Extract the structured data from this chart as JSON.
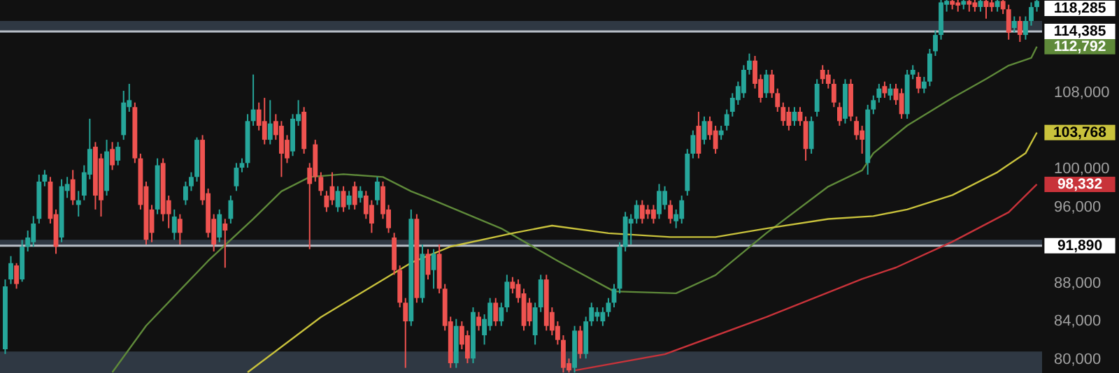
{
  "chart_data": {
    "type": "candlestick",
    "categories": [
      null,
      null,
      null,
      null,
      null,
      null,
      null,
      null,
      null,
      null,
      null,
      null,
      null,
      null,
      null,
      null,
      null,
      null,
      null,
      null,
      null,
      null,
      null,
      null,
      null,
      null,
      null,
      null,
      null,
      null,
      null,
      null,
      null,
      null,
      null,
      null,
      null,
      null,
      null,
      null,
      null,
      null,
      null,
      null,
      null,
      null,
      null,
      null,
      null,
      null,
      null,
      null,
      null,
      null,
      null,
      null,
      null,
      null,
      null,
      null,
      null,
      null,
      null,
      null,
      null,
      null,
      null,
      null,
      null,
      null,
      null,
      null,
      null,
      null,
      null,
      null,
      null,
      null,
      null,
      null,
      null,
      null,
      null,
      null,
      null,
      null,
      null,
      null,
      null,
      null,
      null,
      null,
      null,
      null,
      null,
      null,
      null,
      null,
      null,
      null,
      null,
      null,
      null,
      null,
      null,
      null,
      null,
      null,
      null,
      null,
      null,
      null,
      null,
      null,
      null,
      null,
      null,
      null,
      null,
      null,
      null,
      null,
      null,
      null,
      null,
      null,
      null,
      null,
      null,
      null,
      null,
      null,
      null,
      null,
      null,
      null,
      null,
      null,
      null,
      null,
      null,
      null,
      null,
      null,
      null,
      null,
      null,
      null,
      null,
      null,
      null,
      null,
      null,
      null,
      null,
      null,
      null,
      null,
      null,
      null,
      null,
      null,
      null,
      null,
      null,
      null,
      null,
      null,
      null,
      null,
      null,
      null,
      null,
      null,
      null,
      null,
      null,
      null,
      null,
      null,
      null,
      null,
      null,
      null
    ],
    "ohlc": [
      [
        81020,
        88350,
        80530,
        87620
      ],
      [
        88350,
        90800,
        87870,
        90060
      ],
      [
        89820,
        90060,
        87380,
        87870
      ],
      [
        88350,
        92500,
        88110,
        91780
      ],
      [
        91780,
        93480,
        91290,
        92750
      ],
      [
        92260,
        95000,
        91780,
        94220
      ],
      [
        94710,
        99350,
        94220,
        98620
      ],
      [
        98620,
        99840,
        98130,
        99350
      ],
      [
        98620,
        99110,
        94220,
        94710
      ],
      [
        95200,
        95690,
        91040,
        91780
      ],
      [
        92750,
        98860,
        92260,
        98130
      ],
      [
        97640,
        99110,
        96910,
        98370
      ],
      [
        98860,
        99840,
        96170,
        96660
      ],
      [
        96170,
        97640,
        94950,
        96660
      ],
      [
        97150,
        100330,
        96660,
        99600
      ],
      [
        99350,
        105220,
        98860,
        102040
      ],
      [
        102280,
        102770,
        95690,
        97150
      ],
      [
        101060,
        101550,
        94950,
        96660
      ],
      [
        97640,
        103010,
        97150,
        101790
      ],
      [
        102040,
        102770,
        99840,
        100330
      ],
      [
        100820,
        102770,
        100330,
        102280
      ],
      [
        103500,
        108150,
        103010,
        106920
      ],
      [
        106440,
        108880,
        105950,
        107170
      ],
      [
        106440,
        106920,
        100570,
        101060
      ],
      [
        101060,
        101550,
        95690,
        96170
      ],
      [
        98130,
        98620,
        92020,
        92510
      ],
      [
        95690,
        96170,
        92260,
        93240
      ],
      [
        95690,
        101060,
        95200,
        100330
      ],
      [
        100570,
        101060,
        94460,
        95200
      ],
      [
        96660,
        97150,
        93730,
        95200
      ],
      [
        93240,
        95690,
        92510,
        94950
      ],
      [
        94710,
        95200,
        92020,
        93240
      ],
      [
        96660,
        98620,
        96170,
        98130
      ],
      [
        98130,
        99600,
        97640,
        99110
      ],
      [
        99110,
        103260,
        98620,
        103010
      ],
      [
        103010,
        103500,
        96170,
        96660
      ],
      [
        97400,
        97890,
        92750,
        93240
      ],
      [
        94710,
        95200,
        91290,
        92020
      ],
      [
        92750,
        95690,
        92260,
        95200
      ],
      [
        94220,
        94710,
        89580,
        93485
      ],
      [
        94710,
        97150,
        94220,
        96660
      ],
      [
        98130,
        100570,
        97640,
        100080
      ],
      [
        100080,
        101060,
        99600,
        100570
      ],
      [
        100570,
        105700,
        100080,
        104970
      ],
      [
        104970,
        109860,
        104480,
        106190
      ],
      [
        106190,
        106920,
        103990,
        104480
      ],
      [
        104970,
        107410,
        102530,
        103010
      ],
      [
        103010,
        107170,
        102530,
        104720
      ],
      [
        104970,
        105700,
        103010,
        103500
      ],
      [
        104480,
        104970,
        99110,
        101550
      ],
      [
        103010,
        103500,
        100570,
        101060
      ],
      [
        101790,
        105700,
        101310,
        105220
      ],
      [
        104970,
        107170,
        104480,
        105700
      ],
      [
        105950,
        106440,
        101550,
        102040
      ],
      [
        100080,
        100570,
        91530,
        98370
      ],
      [
        102530,
        103010,
        98620,
        99110
      ],
      [
        99110,
        99600,
        97150,
        97640
      ],
      [
        97150,
        97640,
        95440,
        95930
      ],
      [
        98130,
        99600,
        96170,
        96660
      ],
      [
        95930,
        98130,
        95440,
        97640
      ],
      [
        97640,
        98130,
        95440,
        95930
      ],
      [
        96170,
        97640,
        95690,
        97150
      ],
      [
        98130,
        98620,
        95690,
        96170
      ],
      [
        96910,
        98130,
        96420,
        97640
      ],
      [
        97150,
        97640,
        94710,
        95200
      ],
      [
        96170,
        96660,
        93240,
        94220
      ],
      [
        96660,
        99110,
        96170,
        98620
      ],
      [
        98130,
        98620,
        94710,
        95200
      ],
      [
        95690,
        96170,
        93240,
        93730
      ],
      [
        92750,
        93240,
        88840,
        89330
      ],
      [
        89330,
        89820,
        85420,
        85910
      ],
      [
        85910,
        86400,
        79070,
        83950
      ],
      [
        83950,
        95690,
        83470,
        94710
      ],
      [
        94710,
        95200,
        85910,
        86400
      ],
      [
        86400,
        92020,
        85910,
        91040
      ],
      [
        91040,
        91530,
        88350,
        88840
      ],
      [
        89330,
        91530,
        87380,
        91040
      ],
      [
        91040,
        92020,
        86890,
        87380
      ],
      [
        87380,
        87870,
        82980,
        83470
      ],
      [
        83950,
        84440,
        79070,
        79560
      ],
      [
        79560,
        84200,
        79070,
        83470
      ],
      [
        83470,
        83950,
        81020,
        81510
      ],
      [
        82490,
        82980,
        79560,
        80050
      ],
      [
        80050,
        85420,
        79560,
        84930
      ],
      [
        84440,
        84930,
        82980,
        83470
      ],
      [
        82490,
        84690,
        81510,
        84200
      ],
      [
        83470,
        86400,
        82980,
        85910
      ],
      [
        85910,
        86400,
        83470,
        83950
      ],
      [
        83950,
        85910,
        83470,
        85420
      ],
      [
        85420,
        88840,
        84930,
        88110
      ],
      [
        88110,
        88600,
        86890,
        87380
      ],
      [
        87870,
        88350,
        85910,
        86400
      ],
      [
        86890,
        87380,
        82980,
        83470
      ],
      [
        85910,
        86400,
        83470,
        83950
      ],
      [
        82490,
        85910,
        81510,
        85420
      ],
      [
        85420,
        88840,
        84930,
        88350
      ],
      [
        88350,
        88840,
        82980,
        83470
      ],
      [
        84930,
        85420,
        82490,
        82980
      ],
      [
        83470,
        83950,
        81510,
        82000
      ],
      [
        82000,
        82490,
        78580,
        79070
      ],
      [
        79560,
        80050,
        78580,
        78800
      ],
      [
        79070,
        83470,
        78580,
        82980
      ],
      [
        82980,
        83470,
        80050,
        80530
      ],
      [
        80530,
        84440,
        80050,
        83950
      ],
      [
        83950,
        85910,
        83470,
        85420
      ],
      [
        84440,
        85420,
        83950,
        84930
      ],
      [
        83950,
        85420,
        83470,
        84930
      ],
      [
        84930,
        86400,
        84440,
        85910
      ],
      [
        85910,
        87870,
        85420,
        87380
      ],
      [
        87380,
        92260,
        86890,
        91780
      ],
      [
        91780,
        95440,
        91290,
        94950
      ],
      [
        94220,
        95200,
        92020,
        94710
      ],
      [
        94710,
        96660,
        94220,
        96170
      ],
      [
        96170,
        96660,
        94220,
        94710
      ],
      [
        95690,
        96170,
        94710,
        95200
      ],
      [
        95690,
        96170,
        94220,
        94710
      ],
      [
        95200,
        98370,
        94710,
        97640
      ],
      [
        96170,
        98130,
        95690,
        97640
      ],
      [
        96170,
        96660,
        94220,
        94710
      ],
      [
        94460,
        95690,
        93730,
        95200
      ],
      [
        94710,
        97150,
        94220,
        96660
      ],
      [
        97640,
        102040,
        97150,
        101550
      ],
      [
        101550,
        103990,
        101060,
        103500
      ],
      [
        104480,
        105950,
        101060,
        101550
      ],
      [
        103010,
        105450,
        102530,
        104970
      ],
      [
        104970,
        105450,
        103010,
        103500
      ],
      [
        103990,
        104480,
        101550,
        102040
      ],
      [
        103500,
        104480,
        103010,
        103990
      ],
      [
        104480,
        106190,
        103990,
        105700
      ],
      [
        105950,
        107900,
        105450,
        107410
      ],
      [
        107170,
        109120,
        106680,
        108640
      ],
      [
        107900,
        110840,
        107410,
        110350
      ],
      [
        110350,
        112060,
        109860,
        111320
      ],
      [
        111320,
        111810,
        108390,
        108880
      ],
      [
        109370,
        109860,
        106920,
        107410
      ],
      [
        107900,
        110350,
        107410,
        109860
      ],
      [
        109860,
        110350,
        107410,
        107900
      ],
      [
        107900,
        108390,
        105950,
        106440
      ],
      [
        106440,
        106920,
        104480,
        104970
      ],
      [
        105950,
        106440,
        103990,
        104480
      ],
      [
        104970,
        106440,
        104480,
        105950
      ],
      [
        105950,
        106440,
        104480,
        104970
      ],
      [
        104970,
        105450,
        100820,
        102040
      ],
      [
        102040,
        105450,
        101550,
        104970
      ],
      [
        105950,
        109370,
        105450,
        108880
      ],
      [
        110350,
        110840,
        108880,
        109370
      ],
      [
        109860,
        110350,
        108390,
        108880
      ],
      [
        108880,
        109370,
        106440,
        106920
      ],
      [
        106440,
        106920,
        104480,
        104970
      ],
      [
        105220,
        109370,
        104720,
        108880
      ],
      [
        108880,
        109370,
        104970,
        105450
      ],
      [
        104970,
        105450,
        103010,
        103500
      ],
      [
        103990,
        104480,
        101550,
        103010
      ],
      [
        100570,
        106680,
        99350,
        106190
      ],
      [
        106190,
        107660,
        105700,
        107170
      ],
      [
        107410,
        108880,
        106920,
        108390
      ],
      [
        108640,
        109120,
        107410,
        107900
      ],
      [
        107660,
        108880,
        107170,
        108390
      ],
      [
        108390,
        108880,
        106680,
        107170
      ],
      [
        107900,
        108390,
        105220,
        105700
      ],
      [
        105700,
        110350,
        105220,
        109860
      ],
      [
        109860,
        110840,
        109370,
        110350
      ],
      [
        109610,
        110100,
        107900,
        108390
      ],
      [
        108390,
        109610,
        107900,
        109120
      ],
      [
        109120,
        112550,
        108640,
        112060
      ],
      [
        112300,
        114500,
        111810,
        114010
      ],
      [
        114010,
        117680,
        113520,
        117430
      ],
      [
        117190,
        117680,
        116460,
        117580
      ],
      [
        117580,
        117680,
        116700,
        117190
      ],
      [
        117430,
        117680,
        116460,
        117090
      ],
      [
        117190,
        117680,
        116700,
        117580
      ],
      [
        117580,
        117680,
        116460,
        117190
      ],
      [
        117430,
        117680,
        116460,
        116940
      ],
      [
        116940,
        117680,
        116460,
        117580
      ],
      [
        117580,
        117680,
        115720,
        116940
      ],
      [
        117430,
        117680,
        116460,
        116940
      ],
      [
        116940,
        117680,
        116460,
        117580
      ],
      [
        117580,
        117680,
        116210,
        116700
      ],
      [
        116700,
        117190,
        113520,
        114260
      ],
      [
        114740,
        115960,
        114260,
        115480
      ],
      [
        115480,
        115960,
        113280,
        114010
      ],
      [
        114010,
        115960,
        113520,
        115480
      ],
      [
        115480,
        117430,
        114990,
        116940
      ],
      [
        116940,
        117680,
        116460,
        117580
      ]
    ],
    "series": [
      {
        "type": "line",
        "color": "#5f8a3a",
        "values": [
          null,
          null,
          null,
          null,
          null,
          null,
          null,
          null,
          null,
          null,
          null,
          null,
          null,
          null,
          null,
          null,
          null,
          null,
          null,
          78600,
          null,
          null,
          null,
          null,
          null,
          83500,
          null,
          null,
          null,
          null,
          null,
          null,
          null,
          null,
          null,
          null,
          90300,
          null,
          null,
          null,
          null,
          null,
          null,
          null,
          94700,
          null,
          null,
          null,
          null,
          97600,
          null,
          null,
          null,
          null,
          99100,
          null,
          null,
          null,
          null,
          null,
          99400,
          null,
          null,
          null,
          null,
          null,
          null,
          99100,
          null,
          null,
          null,
          null,
          97600,
          null,
          null,
          96900,
          null,
          null,
          null,
          null,
          null,
          null,
          null,
          null,
          null,
          null,
          null,
          null,
          93700,
          null,
          null,
          null,
          null,
          null,
          null,
          null,
          null,
          null,
          90300,
          null,
          null,
          null,
          null,
          null,
          null,
          null,
          null,
          null,
          87100,
          null,
          null,
          null,
          null,
          null,
          null,
          null,
          null,
          null,
          null,
          86900,
          null,
          null,
          null,
          null,
          null,
          null,
          88800,
          null,
          null,
          null,
          null,
          null,
          null,
          null,
          null,
          93200,
          null,
          null,
          null,
          null,
          null,
          null,
          null,
          null,
          null,
          null,
          98100,
          null,
          null,
          null,
          null,
          null,
          99800,
          null,
          101600,
          null,
          null,
          null,
          null,
          null,
          104500,
          null,
          null,
          null,
          null,
          null,
          null,
          null,
          107400,
          null,
          null,
          null,
          null,
          null,
          109400,
          null,
          null,
          null,
          110800,
          null,
          null,
          null,
          111600,
          112792
        ],
        "value_labels": [
          null,
          null,
          null,
          null,
          null,
          null,
          null,
          null,
          null,
          null,
          null,
          null,
          null,
          null,
          null,
          null,
          null,
          null,
          null,
          null,
          null,
          null,
          null,
          null,
          null,
          null,
          null,
          null,
          null,
          null,
          null,
          null,
          null,
          null,
          null,
          null,
          null,
          null,
          null,
          null,
          null,
          null,
          null,
          null,
          null,
          null,
          null,
          null,
          null,
          null,
          null,
          null,
          null,
          null,
          null,
          null,
          null,
          null,
          null,
          null,
          null,
          null,
          null,
          null,
          null,
          null,
          null,
          null,
          null,
          null,
          null,
          null,
          null,
          null,
          null,
          null,
          null,
          null,
          null,
          null,
          null,
          null,
          null,
          null,
          null,
          null,
          null,
          null,
          null,
          null,
          null,
          null,
          null,
          null,
          null,
          null,
          null,
          null,
          null,
          null,
          null,
          null,
          null,
          null,
          null,
          null,
          null,
          null,
          null,
          null,
          null,
          null,
          null,
          null,
          null,
          null,
          null,
          null,
          null,
          null,
          null,
          null,
          null,
          null,
          null,
          null,
          null,
          null,
          null,
          null,
          null,
          null,
          null,
          null,
          null,
          null,
          null,
          null,
          null,
          null,
          null,
          null,
          null,
          null,
          null,
          null,
          null,
          null,
          null,
          null,
          null,
          null,
          null,
          null,
          null,
          null,
          null,
          null,
          null,
          null,
          null,
          null,
          null,
          null,
          null,
          null,
          null,
          null,
          null,
          null,
          null,
          null,
          null,
          null,
          null,
          null,
          null,
          null,
          null,
          null,
          null,
          null,
          null,
          "112,792"
        ]
      },
      {
        "type": "line",
        "color": "#c9c23c",
        "values": [
          null,
          null,
          null,
          null,
          null,
          null,
          null,
          null,
          null,
          null,
          null,
          null,
          null,
          null,
          null,
          null,
          null,
          null,
          null,
          null,
          null,
          null,
          null,
          null,
          null,
          null,
          null,
          null,
          null,
          null,
          null,
          null,
          null,
          null,
          null,
          null,
          null,
          null,
          null,
          null,
          null,
          null,
          null,
          78600,
          null,
          null,
          null,
          null,
          null,
          null,
          null,
          null,
          null,
          null,
          null,
          null,
          84400,
          null,
          null,
          null,
          null,
          null,
          null,
          null,
          null,
          null,
          null,
          null,
          null,
          null,
          null,
          null,
          90100,
          null,
          null,
          null,
          null,
          null,
          null,
          91800,
          null,
          null,
          null,
          null,
          null,
          null,
          null,
          null,
          null,
          null,
          93200,
          null,
          null,
          null,
          null,
          null,
          null,
          94000,
          null,
          null,
          null,
          null,
          null,
          null,
          null,
          null,
          null,
          93200,
          null,
          null,
          null,
          null,
          null,
          null,
          null,
          null,
          null,
          null,
          92800,
          null,
          null,
          null,
          null,
          null,
          null,
          null,
          92800,
          null,
          null,
          null,
          null,
          null,
          null,
          null,
          null,
          93700,
          null,
          null,
          null,
          null,
          null,
          null,
          null,
          null,
          null,
          null,
          94700,
          null,
          null,
          null,
          null,
          null,
          null,
          null,
          95000,
          null,
          null,
          null,
          null,
          null,
          95700,
          null,
          null,
          null,
          null,
          null,
          null,
          null,
          97200,
          null,
          null,
          null,
          null,
          null,
          null,
          null,
          99600,
          null,
          null,
          null,
          null,
          101600,
          null,
          103768
        ],
        "value_labels": [
          null,
          null,
          null,
          null,
          null,
          null,
          null,
          null,
          null,
          null,
          null,
          null,
          null,
          null,
          null,
          null,
          null,
          null,
          null,
          null,
          null,
          null,
          null,
          null,
          null,
          null,
          null,
          null,
          null,
          null,
          null,
          null,
          null,
          null,
          null,
          null,
          null,
          null,
          null,
          null,
          null,
          null,
          null,
          null,
          null,
          null,
          null,
          null,
          null,
          null,
          null,
          null,
          null,
          null,
          null,
          null,
          null,
          null,
          null,
          null,
          null,
          null,
          null,
          null,
          null,
          null,
          null,
          null,
          null,
          null,
          null,
          null,
          null,
          null,
          null,
          null,
          null,
          null,
          null,
          null,
          null,
          null,
          null,
          null,
          null,
          null,
          null,
          null,
          null,
          null,
          null,
          null,
          null,
          null,
          null,
          null,
          null,
          null,
          null,
          null,
          null,
          null,
          null,
          null,
          null,
          null,
          null,
          null,
          null,
          null,
          null,
          null,
          null,
          null,
          null,
          null,
          null,
          null,
          null,
          null,
          null,
          null,
          null,
          null,
          null,
          null,
          null,
          null,
          null,
          null,
          null,
          null,
          null,
          null,
          null,
          null,
          null,
          null,
          null,
          null,
          null,
          null,
          null,
          null,
          null,
          null,
          null,
          null,
          null,
          null,
          null,
          null,
          null,
          null,
          null,
          null,
          null,
          null,
          null,
          null,
          null,
          null,
          null,
          null,
          null,
          null,
          null,
          null,
          null,
          null,
          null,
          null,
          null,
          null,
          null,
          null,
          null,
          null,
          null,
          null,
          null,
          null,
          null,
          "103,768"
        ]
      },
      {
        "type": "line",
        "color": "#c8333a",
        "values": [
          null,
          null,
          null,
          null,
          null,
          null,
          null,
          null,
          null,
          null,
          null,
          null,
          null,
          null,
          null,
          null,
          null,
          null,
          null,
          null,
          null,
          null,
          null,
          null,
          null,
          null,
          null,
          null,
          null,
          null,
          null,
          null,
          null,
          null,
          null,
          null,
          null,
          null,
          null,
          null,
          null,
          null,
          null,
          null,
          null,
          null,
          null,
          null,
          null,
          null,
          null,
          null,
          null,
          null,
          null,
          null,
          null,
          null,
          null,
          null,
          null,
          null,
          null,
          null,
          null,
          null,
          null,
          null,
          null,
          null,
          null,
          null,
          null,
          null,
          null,
          null,
          null,
          null,
          null,
          null,
          null,
          null,
          null,
          null,
          null,
          null,
          null,
          null,
          null,
          null,
          null,
          null,
          null,
          null,
          null,
          null,
          null,
          null,
          null,
          null,
          null,
          78800,
          null,
          null,
          null,
          null,
          null,
          null,
          null,
          null,
          null,
          null,
          null,
          null,
          null,
          null,
          null,
          80500,
          null,
          null,
          null,
          null,
          null,
          null,
          null,
          null,
          null,
          null,
          null,
          null,
          null,
          null,
          null,
          null,
          null,
          84400,
          null,
          null,
          null,
          null,
          null,
          null,
          null,
          null,
          null,
          null,
          null,
          null,
          null,
          null,
          null,
          null,
          88400,
          null,
          null,
          null,
          null,
          null,
          89600,
          null,
          null,
          null,
          null,
          null,
          null,
          null,
          null,
          null,
          92300,
          null,
          null,
          null,
          null,
          null,
          null,
          null,
          null,
          null,
          95400,
          null,
          null,
          null,
          null,
          98332
        ],
        "value_labels": [
          null,
          null,
          null,
          null,
          null,
          null,
          null,
          null,
          null,
          null,
          null,
          null,
          null,
          null,
          null,
          null,
          null,
          null,
          null,
          null,
          null,
          null,
          null,
          null,
          null,
          null,
          null,
          null,
          null,
          null,
          null,
          null,
          null,
          null,
          null,
          null,
          null,
          null,
          null,
          null,
          null,
          null,
          null,
          null,
          null,
          null,
          null,
          null,
          null,
          null,
          null,
          null,
          null,
          null,
          null,
          null,
          null,
          null,
          null,
          null,
          null,
          null,
          null,
          null,
          null,
          null,
          null,
          null,
          null,
          null,
          null,
          null,
          null,
          null,
          null,
          null,
          null,
          null,
          null,
          null,
          null,
          null,
          null,
          null,
          null,
          null,
          null,
          null,
          null,
          null,
          null,
          null,
          null,
          null,
          null,
          null,
          null,
          null,
          null,
          null,
          null,
          null,
          null,
          null,
          null,
          null,
          null,
          null,
          null,
          null,
          null,
          null,
          null,
          null,
          null,
          null,
          null,
          null,
          null,
          null,
          null,
          null,
          null,
          null,
          null,
          null,
          null,
          null,
          null,
          null,
          null,
          null,
          null,
          null,
          null,
          null,
          null,
          null,
          null,
          null,
          null,
          null,
          null,
          null,
          null,
          null,
          null,
          null,
          null,
          null,
          null,
          null,
          null,
          null,
          null,
          null,
          null,
          null,
          null,
          null,
          null,
          null,
          null,
          null,
          null,
          null,
          null,
          null,
          null,
          null,
          null,
          null,
          null,
          null,
          null,
          null,
          null,
          null,
          null,
          null,
          null,
          null,
          null,
          "98,332"
        ]
      }
    ],
    "ylim": [
      78530,
      117680
    ],
    "yticks": [
      {
        "value": 80000,
        "label": "80,000"
      },
      {
        "value": 84000,
        "label": "84,000"
      },
      {
        "value": 88000,
        "label": "88,000"
      },
      {
        "value": 96000,
        "label": "96,000"
      },
      {
        "value": 100000,
        "label": "100,000"
      },
      {
        "value": 108000,
        "label": "108,000"
      }
    ],
    "ref_lines": [
      {
        "axis": "y",
        "value": 91890,
        "label": "91,890",
        "color": "#b8bec6"
      },
      {
        "axis": "y",
        "value": 114385,
        "label": "114,385",
        "color": "#b8bec6"
      }
    ],
    "bands": [
      {
        "axis": "y",
        "from": 78530,
        "to": 80780,
        "color": "#3a4654"
      },
      {
        "axis": "y",
        "from": 91780,
        "to": 92510,
        "color": "#3a4654"
      },
      {
        "axis": "y",
        "from": 114260,
        "to": 115480,
        "color": "#3a4654"
      }
    ],
    "annotations": [
      "118,285"
    ]
  }
}
